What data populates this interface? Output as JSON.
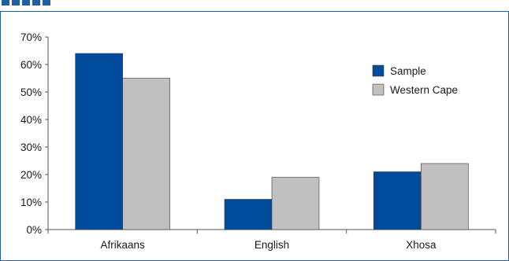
{
  "chart_data": {
    "type": "bar",
    "categories": [
      "Afrikaans",
      "English",
      "Xhosa"
    ],
    "series": [
      {
        "name": "Sample",
        "color": "#004b9b",
        "values": [
          64,
          11,
          21
        ]
      },
      {
        "name": "Western Cape",
        "color": "#c0c0c0",
        "values": [
          55,
          19,
          24
        ]
      }
    ],
    "ylim": [
      0,
      70
    ],
    "yticks": [
      "0%",
      "10%",
      "20%",
      "30%",
      "40%",
      "50%",
      "60%",
      "70%"
    ],
    "legend_position": "top-right",
    "grid": false
  }
}
